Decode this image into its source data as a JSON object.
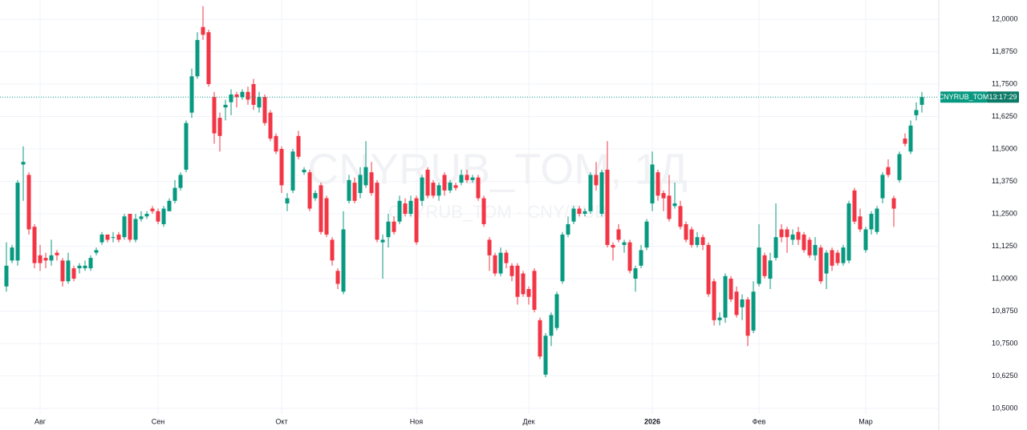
{
  "chart_data": {
    "type": "candlestick",
    "title": "CNYRUB_TOM, 1Д",
    "subtitle": "CNYRUB_TOM · CNY/RUB",
    "up_color": "#089981",
    "down_color": "#f23645",
    "grid": true,
    "ylim": [
      10.4167,
      12.0741
    ],
    "yticks": [
      {
        "value": 12.0,
        "label": "12,0000"
      },
      {
        "value": 11.875,
        "label": "11,8750"
      },
      {
        "value": 11.75,
        "label": "11,7500"
      },
      {
        "value": 11.625,
        "label": "11,6250"
      },
      {
        "value": 11.5,
        "label": "11,5000"
      },
      {
        "value": 11.375,
        "label": "11,3750"
      },
      {
        "value": 11.25,
        "label": "11,2500"
      },
      {
        "value": 11.125,
        "label": "11,1250"
      },
      {
        "value": 11.0,
        "label": "11,0000"
      },
      {
        "value": 10.875,
        "label": "10,8750"
      },
      {
        "value": 10.75,
        "label": "10,7500"
      },
      {
        "value": 10.625,
        "label": "10,6250"
      },
      {
        "value": 10.5,
        "label": "10,5000"
      }
    ],
    "xticks": [
      {
        "value": 6,
        "label": "Авг"
      },
      {
        "value": 27,
        "label": "Сен"
      },
      {
        "value": 49,
        "label": "Окт"
      },
      {
        "value": 73,
        "label": "Ноя"
      },
      {
        "value": 93,
        "label": "Дек"
      },
      {
        "value": 115,
        "label": "2026"
      },
      {
        "value": 134,
        "label": "Фев"
      },
      {
        "value": 153,
        "label": "Мар"
      }
    ],
    "last_price": {
      "value": 11.7,
      "name": "CNYRUB_TOM",
      "time": "13:17:29"
    },
    "open": [
      10.97,
      11.07,
      11.07,
      11.44,
      11.4,
      11.2,
      11.09,
      11.08,
      11.07,
      11.1,
      11.07,
      10.99,
      11.04,
      11.04,
      11.04,
      11.04,
      11.1,
      11.14,
      11.17,
      11.16,
      11.17,
      11.16,
      11.25,
      11.15,
      11.23,
      11.24,
      11.27,
      11.26,
      11.21,
      11.26,
      11.3,
      11.35,
      11.42,
      11.64,
      11.78,
      11.97,
      11.95,
      11.7,
      11.62,
      11.66,
      11.68,
      11.71,
      11.7,
      11.72,
      11.75,
      11.66,
      11.7,
      11.64,
      11.55,
      11.5,
      11.29,
      11.34,
      11.55,
      11.41,
      11.41,
      11.31,
      11.36,
      11.31,
      11.15,
      11.03,
      10.95,
      11.3,
      11.37,
      11.33,
      11.36,
      11.41,
      11.37,
      11.14,
      11.16,
      11.22,
      11.22,
      11.29,
      11.25,
      11.31,
      11.3,
      11.42,
      11.37,
      11.32,
      11.4,
      11.34,
      11.36,
      11.37,
      11.4,
      11.38,
      11.39,
      11.31,
      11.15,
      11.09,
      11.02,
      11.1,
      11.05,
      11.05,
      11.02,
      10.96,
      11.03,
      10.84,
      10.63,
      10.78,
      10.81,
      10.99,
      11.17,
      11.22,
      11.27,
      11.25,
      11.26,
      11.4,
      11.25,
      11.42,
      11.13,
      11.19,
      11.13,
      11.14,
      11.0,
      11.05,
      11.12,
      11.29,
      11.41,
      11.33,
      11.32,
      11.28,
      11.28,
      11.21,
      11.19,
      11.13,
      11.16,
      11.13,
      10.99,
      10.84,
      10.85,
      11.0,
      10.95,
      10.89,
      10.92,
      10.8,
      10.98,
      11.09,
      11.0,
      11.08,
      11.19,
      11.19,
      11.15,
      11.18,
      11.17,
      11.15,
      11.09,
      11.12,
      11.02,
      11.11,
      11.1,
      11.06,
      11.07,
      11.34,
      11.24,
      11.11,
      11.19,
      11.18,
      11.31,
      11.43,
      11.31,
      11.38,
      11.54,
      11.49,
      11.63,
      11.67
    ],
    "high": [
      11.14,
      11.13,
      11.38,
      11.51,
      11.41,
      11.21,
      11.13,
      11.1,
      11.15,
      11.11,
      11.08,
      11.1,
      11.05,
      11.06,
      11.07,
      11.09,
      11.12,
      11.18,
      11.17,
      11.18,
      11.18,
      11.25,
      11.25,
      11.25,
      11.26,
      11.26,
      11.28,
      11.27,
      11.28,
      11.31,
      11.38,
      11.41,
      11.61,
      11.81,
      11.95,
      12.05,
      11.96,
      11.72,
      11.64,
      11.69,
      11.73,
      11.72,
      11.73,
      11.74,
      11.77,
      11.72,
      11.71,
      11.65,
      11.56,
      11.51,
      11.33,
      11.5,
      11.57,
      11.43,
      11.42,
      11.34,
      11.37,
      11.32,
      11.16,
      11.04,
      11.26,
      11.4,
      11.39,
      11.43,
      11.53,
      11.45,
      11.38,
      11.17,
      11.25,
      11.24,
      11.32,
      11.31,
      11.32,
      11.32,
      11.4,
      11.43,
      11.38,
      11.37,
      11.41,
      11.38,
      11.37,
      11.42,
      11.42,
      11.4,
      11.4,
      11.32,
      11.16,
      11.1,
      11.12,
      11.11,
      11.06,
      11.06,
      11.03,
      10.97,
      11.04,
      10.85,
      10.79,
      10.87,
      10.95,
      11.18,
      11.24,
      11.28,
      11.28,
      11.27,
      11.41,
      11.45,
      11.42,
      11.53,
      11.14,
      11.21,
      11.15,
      11.15,
      11.05,
      11.13,
      11.23,
      11.49,
      11.42,
      11.34,
      11.4,
      11.37,
      11.3,
      11.22,
      11.2,
      11.18,
      11.17,
      11.14,
      11.0,
      10.87,
      11.02,
      11.01,
      10.97,
      10.94,
      10.93,
      10.99,
      11.21,
      11.1,
      11.1,
      11.29,
      11.21,
      11.2,
      11.19,
      11.2,
      11.18,
      11.16,
      11.16,
      11.13,
      11.11,
      11.12,
      11.11,
      11.13,
      11.3,
      11.35,
      11.27,
      11.2,
      11.26,
      11.28,
      11.41,
      11.46,
      11.32,
      11.49,
      11.56,
      11.61,
      11.68,
      11.72
    ],
    "low": [
      10.95,
      11.06,
      11.05,
      11.3,
      11.17,
      11.04,
      11.03,
      11.04,
      11.05,
      11.07,
      10.97,
      10.98,
      10.99,
      11.02,
      11.03,
      11.03,
      11.09,
      11.13,
      11.14,
      11.14,
      11.14,
      11.15,
      11.14,
      11.14,
      11.22,
      11.23,
      11.25,
      11.21,
      11.2,
      11.26,
      11.29,
      11.34,
      11.41,
      11.62,
      11.77,
      11.92,
      11.74,
      11.52,
      11.49,
      11.61,
      11.63,
      11.66,
      11.69,
      11.67,
      11.65,
      11.64,
      11.59,
      11.53,
      11.48,
      11.33,
      11.26,
      11.33,
      11.46,
      11.4,
      11.26,
      11.3,
      11.17,
      11.16,
      11.05,
      10.96,
      10.94,
      11.29,
      11.29,
      11.31,
      11.35,
      11.32,
      11.14,
      11.0,
      11.12,
      11.17,
      11.21,
      11.24,
      11.24,
      11.13,
      11.28,
      11.31,
      11.31,
      11.3,
      11.32,
      11.33,
      11.34,
      11.36,
      11.37,
      11.37,
      11.3,
      11.2,
      11.03,
      11.01,
      11.01,
      11.04,
      10.99,
      10.9,
      10.93,
      10.9,
      10.87,
      10.69,
      10.62,
      10.74,
      10.8,
      10.98,
      11.16,
      11.21,
      11.24,
      11.24,
      11.25,
      11.34,
      11.24,
      11.12,
      11.07,
      11.14,
      11.1,
      11.02,
      10.95,
      11.04,
      11.11,
      11.26,
      11.3,
      11.26,
      11.22,
      11.27,
      11.19,
      11.14,
      11.12,
      11.12,
      11.11,
      10.93,
      10.82,
      10.82,
      10.83,
      10.91,
      10.85,
      10.84,
      10.74,
      10.79,
      10.97,
      11.0,
      10.96,
      11.07,
      11.14,
      11.1,
      11.13,
      11.13,
      11.1,
      11.08,
      11.07,
      10.98,
      10.96,
      11.03,
      11.05,
      11.05,
      11.06,
      11.21,
      11.18,
      11.1,
      11.17,
      11.17,
      11.29,
      11.39,
      11.2,
      11.37,
      11.51,
      11.48,
      11.61,
      11.64
    ],
    "close": [
      11.05,
      11.12,
      11.37,
      11.45,
      11.19,
      11.06,
      11.06,
      11.07,
      11.09,
      11.09,
      10.99,
      11.07,
      11.0,
      11.05,
      11.05,
      11.08,
      11.11,
      11.17,
      11.15,
      11.16,
      11.15,
      11.24,
      11.15,
      11.23,
      11.24,
      11.25,
      11.26,
      11.22,
      11.27,
      11.3,
      11.35,
      11.4,
      11.6,
      11.78,
      11.92,
      11.94,
      11.75,
      11.56,
      11.55,
      11.67,
      11.71,
      11.7,
      11.72,
      11.69,
      11.67,
      11.7,
      11.6,
      11.54,
      11.49,
      11.36,
      11.31,
      11.49,
      11.47,
      11.42,
      11.27,
      11.33,
      11.18,
      11.17,
      11.07,
      10.98,
      11.19,
      11.38,
      11.3,
      11.4,
      11.43,
      11.33,
      11.15,
      11.15,
      11.22,
      11.18,
      11.3,
      11.25,
      11.3,
      11.14,
      11.39,
      11.32,
      11.32,
      11.36,
      11.34,
      11.37,
      11.35,
      11.4,
      11.38,
      11.39,
      11.31,
      11.21,
      11.09,
      11.02,
      11.1,
      11.06,
      11.01,
      10.93,
      10.94,
      10.93,
      10.88,
      10.7,
      10.78,
      10.86,
      10.94,
      11.17,
      11.21,
      11.27,
      11.25,
      11.26,
      11.4,
      11.36,
      11.41,
      11.13,
      11.12,
      11.15,
      11.14,
      11.03,
      11.04,
      11.11,
      11.22,
      11.44,
      11.32,
      11.31,
      11.23,
      11.29,
      11.2,
      11.15,
      11.13,
      11.16,
      11.13,
      10.94,
      10.84,
      10.85,
      11.01,
      10.92,
      10.86,
      10.92,
      10.78,
      10.95,
      11.12,
      11.01,
      11.07,
      11.16,
      11.16,
      11.16,
      11.17,
      11.15,
      11.11,
      11.09,
      11.13,
      10.99,
      11.1,
      11.05,
      11.06,
      11.12,
      11.29,
      11.22,
      11.19,
      11.19,
      11.25,
      11.27,
      11.4,
      11.4,
      11.27,
      11.48,
      11.52,
      11.59,
      11.65,
      11.7
    ]
  }
}
